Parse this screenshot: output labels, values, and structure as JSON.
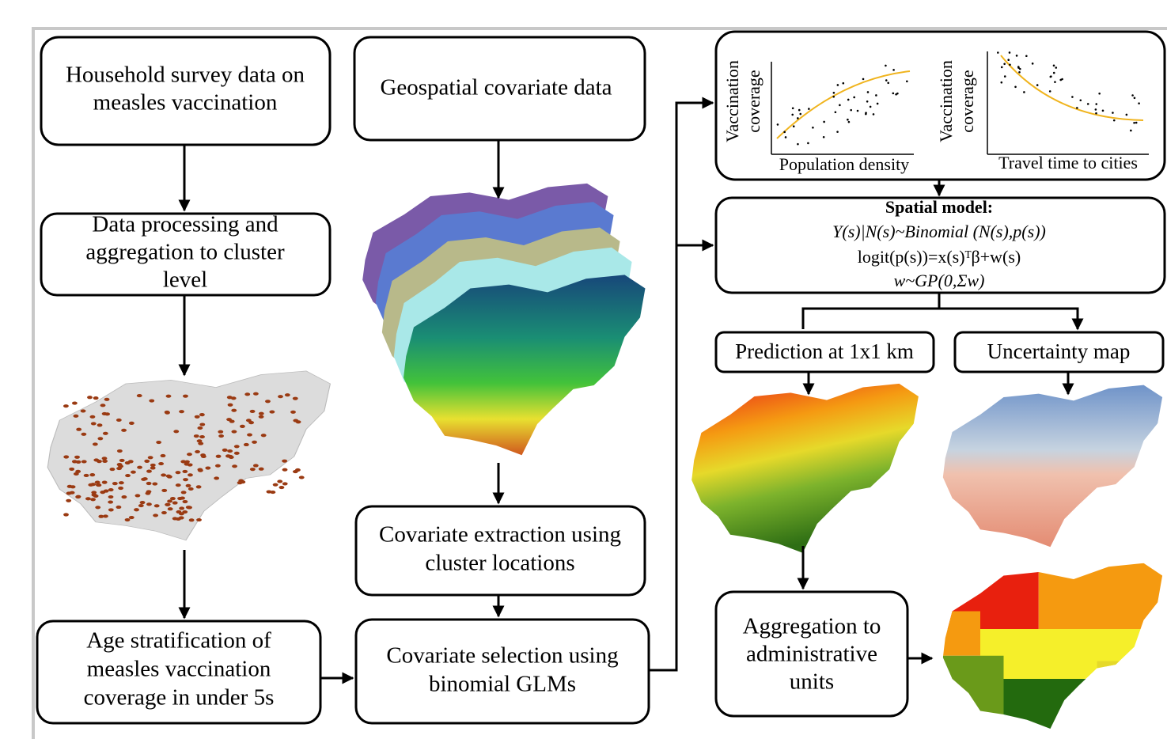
{
  "nodes": {
    "survey": {
      "lines": [
        "Household survey data on",
        "measles vaccination"
      ]
    },
    "geospatial": {
      "lines": [
        "Geospatial covariate data"
      ]
    },
    "processing": {
      "lines": [
        "Data processing and",
        "aggregation to cluster",
        "level"
      ]
    },
    "age": {
      "lines": [
        "Age stratification of",
        "measles vaccination",
        "coverage in under 5s"
      ]
    },
    "extraction": {
      "lines": [
        "Covariate extraction using",
        "cluster locations"
      ]
    },
    "selection": {
      "lines": [
        "Covariate selection using",
        "binomial GLMs"
      ]
    },
    "plots": {
      "y_label": [
        "Vaccination",
        "coverage"
      ],
      "x_label_1": "Population density",
      "x_label_2": "Travel time to cities"
    },
    "model": {
      "title": "Spatial model:",
      "lines": [
        "Y(s)|N(s)~Binomial (N(s),p(s))",
        "logit(p(s))=x(s)ᵀβ+w(s)",
        "w~GP(0,Σw)"
      ]
    },
    "prediction": {
      "lines": [
        "Prediction at 1x1 km"
      ]
    },
    "uncertainty": {
      "lines": [
        "Uncertainty map"
      ]
    },
    "aggregation": {
      "lines": [
        "Aggregation to",
        "administrative",
        "units"
      ]
    }
  }
}
